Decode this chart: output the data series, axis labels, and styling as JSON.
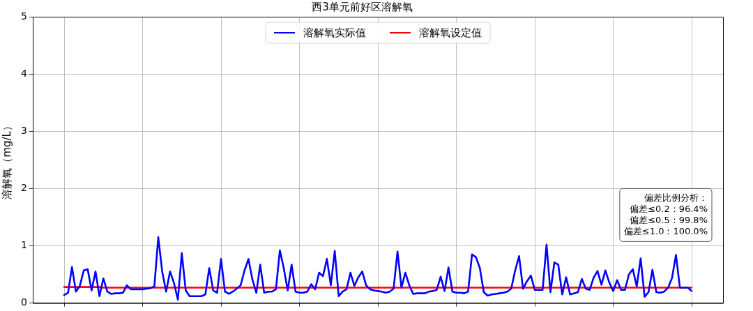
{
  "chart_data": {
    "type": "line",
    "title": "西3单元前好区溶解氧",
    "ylabel": "溶解氧（mg/L）",
    "categories": [
      null,
      null,
      null,
      null,
      null,
      null,
      null,
      null,
      null,
      null,
      null,
      null,
      null,
      null,
      null,
      null,
      null,
      null,
      null,
      null,
      null,
      null,
      null,
      null,
      null,
      null,
      null,
      null,
      null,
      null,
      null,
      null,
      null,
      null,
      null,
      null,
      null,
      null,
      null,
      null,
      null,
      null,
      null,
      null,
      null,
      null,
      null,
      null,
      null,
      null,
      null,
      null,
      null,
      null,
      null,
      null,
      null,
      null,
      null,
      null,
      null,
      null,
      null,
      null,
      null,
      null,
      null,
      null,
      null,
      null,
      null,
      null,
      null,
      null,
      null,
      null,
      null,
      null,
      null,
      null,
      null,
      null,
      null,
      null,
      null,
      null,
      null,
      null,
      null,
      null,
      null,
      null,
      null,
      null,
      null,
      null,
      null,
      null,
      null,
      null,
      null,
      null,
      null,
      null,
      null,
      null,
      null,
      null,
      null,
      null,
      null,
      null,
      null,
      null,
      null,
      null,
      null,
      null,
      null,
      null,
      null,
      null,
      null,
      null,
      null,
      null,
      null,
      null,
      null,
      null,
      null,
      null,
      null,
      null,
      null,
      null,
      null,
      null,
      null,
      null,
      null,
      null,
      null,
      null,
      null,
      null,
      null,
      null,
      null,
      null,
      null,
      null,
      null,
      null,
      null,
      null,
      null,
      null,
      null,
      null,
      null
    ],
    "ylim": [
      0,
      5
    ],
    "yticks": [
      0,
      1,
      2,
      3,
      4,
      5
    ],
    "grid": true,
    "legend": "top",
    "marker": "none",
    "line_style": "solid",
    "annotations": [
      "偏差比例分析：",
      "偏差≤0.2：96.4%",
      "偏差≤0.5：99.8%",
      "偏差≤1.0：100.0%"
    ],
    "series": [
      {
        "name": "溶解氧实际值",
        "color": "#0000ff",
        "values": [
          0.14,
          0.18,
          0.63,
          0.2,
          0.3,
          0.57,
          0.59,
          0.22,
          0.55,
          0.12,
          0.43,
          0.2,
          0.16,
          0.17,
          0.17,
          0.18,
          0.31,
          0.24,
          0.24,
          0.24,
          0.24,
          0.25,
          0.26,
          0.29,
          1.15,
          0.55,
          0.2,
          0.55,
          0.35,
          0.06,
          0.87,
          0.22,
          0.12,
          0.12,
          0.12,
          0.12,
          0.15,
          0.61,
          0.22,
          0.18,
          0.77,
          0.2,
          0.16,
          0.2,
          0.25,
          0.31,
          0.57,
          0.77,
          0.41,
          0.18,
          0.67,
          0.18,
          0.2,
          0.2,
          0.24,
          0.92,
          0.61,
          0.22,
          0.67,
          0.2,
          0.18,
          0.18,
          0.2,
          0.33,
          0.24,
          0.53,
          0.47,
          0.77,
          0.31,
          0.91,
          0.12,
          0.2,
          0.24,
          0.53,
          0.3,
          0.45,
          0.55,
          0.31,
          0.24,
          0.22,
          0.21,
          0.2,
          0.18,
          0.2,
          0.25,
          0.9,
          0.27,
          0.53,
          0.31,
          0.16,
          0.17,
          0.17,
          0.17,
          0.2,
          0.21,
          0.23,
          0.46,
          0.21,
          0.62,
          0.2,
          0.18,
          0.18,
          0.17,
          0.2,
          0.85,
          0.8,
          0.61,
          0.19,
          0.13,
          0.15,
          0.16,
          0.17,
          0.18,
          0.2,
          0.25,
          0.57,
          0.82,
          0.25,
          0.38,
          0.48,
          0.23,
          0.23,
          0.23,
          1.02,
          0.19,
          0.71,
          0.67,
          0.15,
          0.45,
          0.15,
          0.17,
          0.19,
          0.42,
          0.25,
          0.23,
          0.44,
          0.56,
          0.32,
          0.57,
          0.36,
          0.21,
          0.4,
          0.23,
          0.23,
          0.5,
          0.59,
          0.29,
          0.78,
          0.11,
          0.19,
          0.58,
          0.19,
          0.18,
          0.2,
          0.27,
          0.44,
          0.84,
          0.27,
          0.27,
          0.27,
          0.21
        ]
      },
      {
        "name": "溶解氧设定值",
        "color": "#ff0000",
        "values": [
          0.28,
          0.28,
          0.28,
          0.28,
          0.28,
          0.28,
          0.28,
          0.28,
          0.28,
          0.28,
          0.27,
          0.27,
          0.27,
          0.27,
          0.27,
          0.27,
          0.27,
          0.27,
          0.27,
          0.27,
          0.27,
          0.27,
          0.27,
          0.27,
          0.27,
          0.27,
          0.27,
          0.27,
          0.27,
          0.27,
          0.27,
          0.27,
          0.27,
          0.27,
          0.27,
          0.27,
          0.27,
          0.27,
          0.27,
          0.27,
          0.27,
          0.27,
          0.27,
          0.27,
          0.27,
          0.27,
          0.27,
          0.27,
          0.27,
          0.27,
          0.27,
          0.27,
          0.27,
          0.27,
          0.27,
          0.27,
          0.27,
          0.27,
          0.27,
          0.27,
          0.27,
          0.27,
          0.27,
          0.27,
          0.27,
          0.27,
          0.27,
          0.27,
          0.27,
          0.27,
          0.27,
          0.27,
          0.27,
          0.27,
          0.27,
          0.27,
          0.27,
          0.27,
          0.27,
          0.27,
          0.27,
          0.27,
          0.27,
          0.27,
          0.27,
          0.27,
          0.27,
          0.27,
          0.27,
          0.27,
          0.27,
          0.27,
          0.27,
          0.27,
          0.27,
          0.27,
          0.27,
          0.27,
          0.27,
          0.27,
          0.27,
          0.27,
          0.27,
          0.27,
          0.27,
          0.27,
          0.27,
          0.27,
          0.27,
          0.27,
          0.27,
          0.27,
          0.27,
          0.27,
          0.27,
          0.27,
          0.27,
          0.27,
          0.27,
          0.27,
          0.27,
          0.27,
          0.27,
          0.27,
          0.27,
          0.27,
          0.27,
          0.27,
          0.27,
          0.27,
          0.27,
          0.27,
          0.27,
          0.27,
          0.27,
          0.27,
          0.27,
          0.27,
          0.27,
          0.27,
          0.27,
          0.27,
          0.27,
          0.27,
          0.27,
          0.27,
          0.27,
          0.27,
          0.27,
          0.27,
          0.27,
          0.27,
          0.27,
          0.27,
          0.27,
          0.27,
          0.27,
          0.27,
          0.27,
          0.27,
          0.27
        ]
      }
    ]
  }
}
